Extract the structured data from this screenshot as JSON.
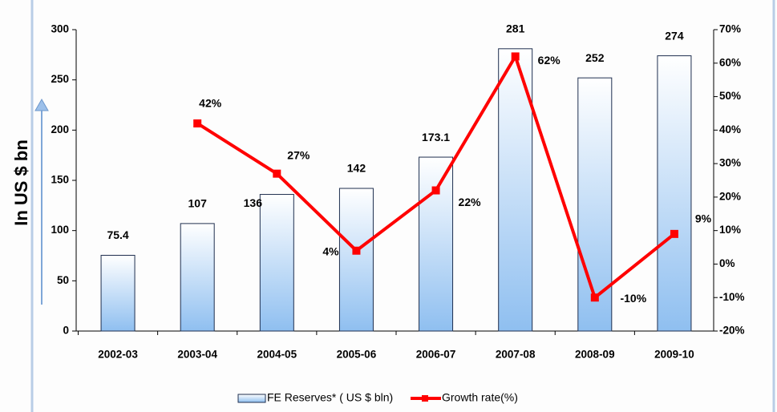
{
  "chart_data": {
    "type": "bar",
    "categories": [
      "2002-03",
      "2003-04",
      "2004-05",
      "2005-06",
      "2006-07",
      "2007-08",
      "2008-09",
      "2009-10"
    ],
    "y_label": "In US $ bn",
    "series": [
      {
        "name": "FE Reserves* ( US $ bln)",
        "type": "bar",
        "color": "#8fbff0",
        "values": [
          75.4,
          107,
          136,
          142,
          173.1,
          281,
          252,
          274
        ]
      },
      {
        "name": "Growth rate(%)",
        "type": "line",
        "axis": "y2",
        "color": "#ff0000",
        "values": [
          null,
          42,
          27,
          4,
          22,
          62,
          -10,
          9
        ],
        "value_labels": [
          null,
          "42%",
          "27%",
          "4%",
          "22%",
          "62%",
          "-10%",
          "9%"
        ]
      }
    ],
    "ylim": [
      0,
      300
    ],
    "yticks": [
      0,
      50,
      100,
      150,
      200,
      250,
      300
    ],
    "y2lim": [
      -20,
      70
    ],
    "y2ticks": [
      {
        "value": -20,
        "label": "-20%"
      },
      {
        "value": -10,
        "label": "-10%"
      },
      {
        "value": 0,
        "label": "0%"
      },
      {
        "value": 10,
        "label": "10%"
      },
      {
        "value": 20,
        "label": "20%"
      },
      {
        "value": 30,
        "label": "30%"
      },
      {
        "value": 40,
        "label": "40%"
      },
      {
        "value": 50,
        "label": "50%"
      },
      {
        "value": 60,
        "label": "60%"
      },
      {
        "value": 70,
        "label": "70%"
      }
    ],
    "legend": "bottom"
  }
}
